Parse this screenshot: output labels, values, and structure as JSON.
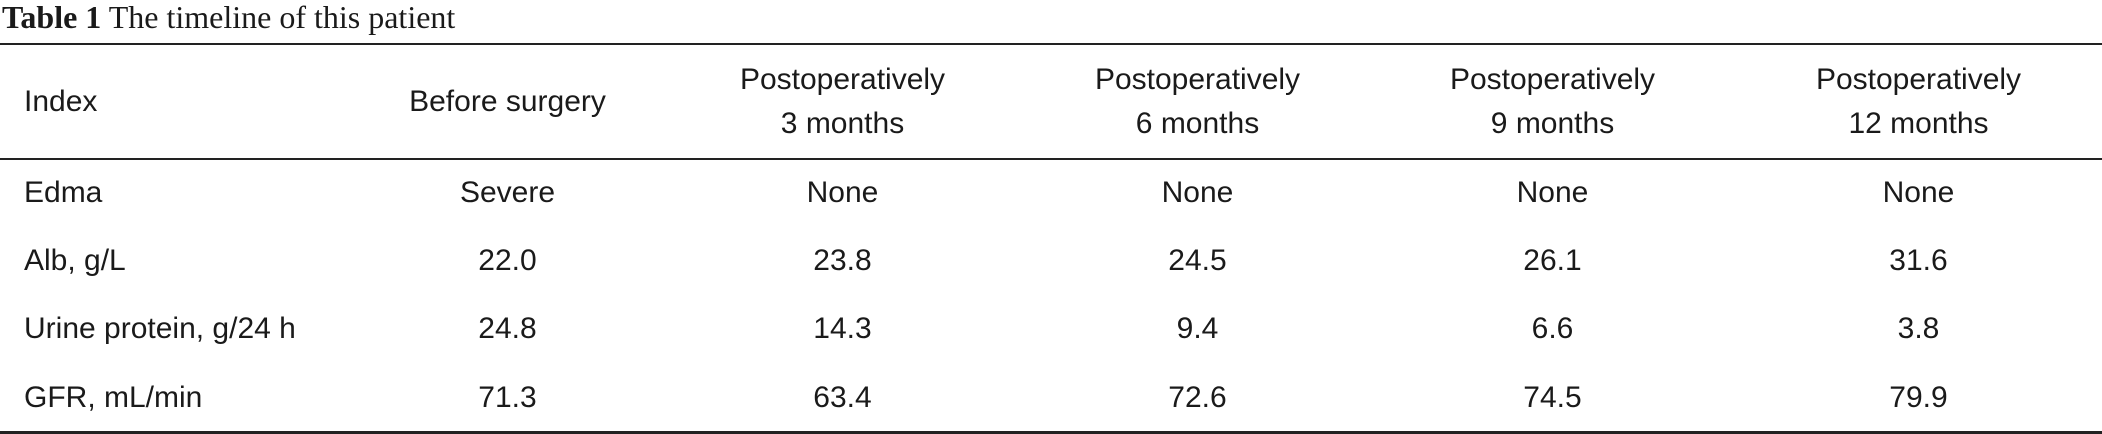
{
  "caption": {
    "label": "Table 1",
    "text": "The timeline of this patient"
  },
  "table": {
    "headers": [
      {
        "line1": "Index",
        "line2": ""
      },
      {
        "line1": "Before surgery",
        "line2": ""
      },
      {
        "line1": "Postoperatively",
        "line2": "3 months"
      },
      {
        "line1": "Postoperatively",
        "line2": "6 months"
      },
      {
        "line1": "Postoperatively",
        "line2": "9 months"
      },
      {
        "line1": "Postoperatively",
        "line2": "12 months"
      }
    ],
    "rows": [
      [
        "Edma",
        "Severe",
        "None",
        "None",
        "None",
        "None"
      ],
      [
        "Alb, g/L",
        "22.0",
        "23.8",
        "24.5",
        "26.1",
        "31.6"
      ],
      [
        "Urine protein, g/24 h",
        "24.8",
        "14.3",
        "9.4",
        "6.6",
        "3.8"
      ],
      [
        "GFR, mL/min",
        "71.3",
        "63.4",
        "72.6",
        "74.5",
        "79.9"
      ]
    ]
  }
}
